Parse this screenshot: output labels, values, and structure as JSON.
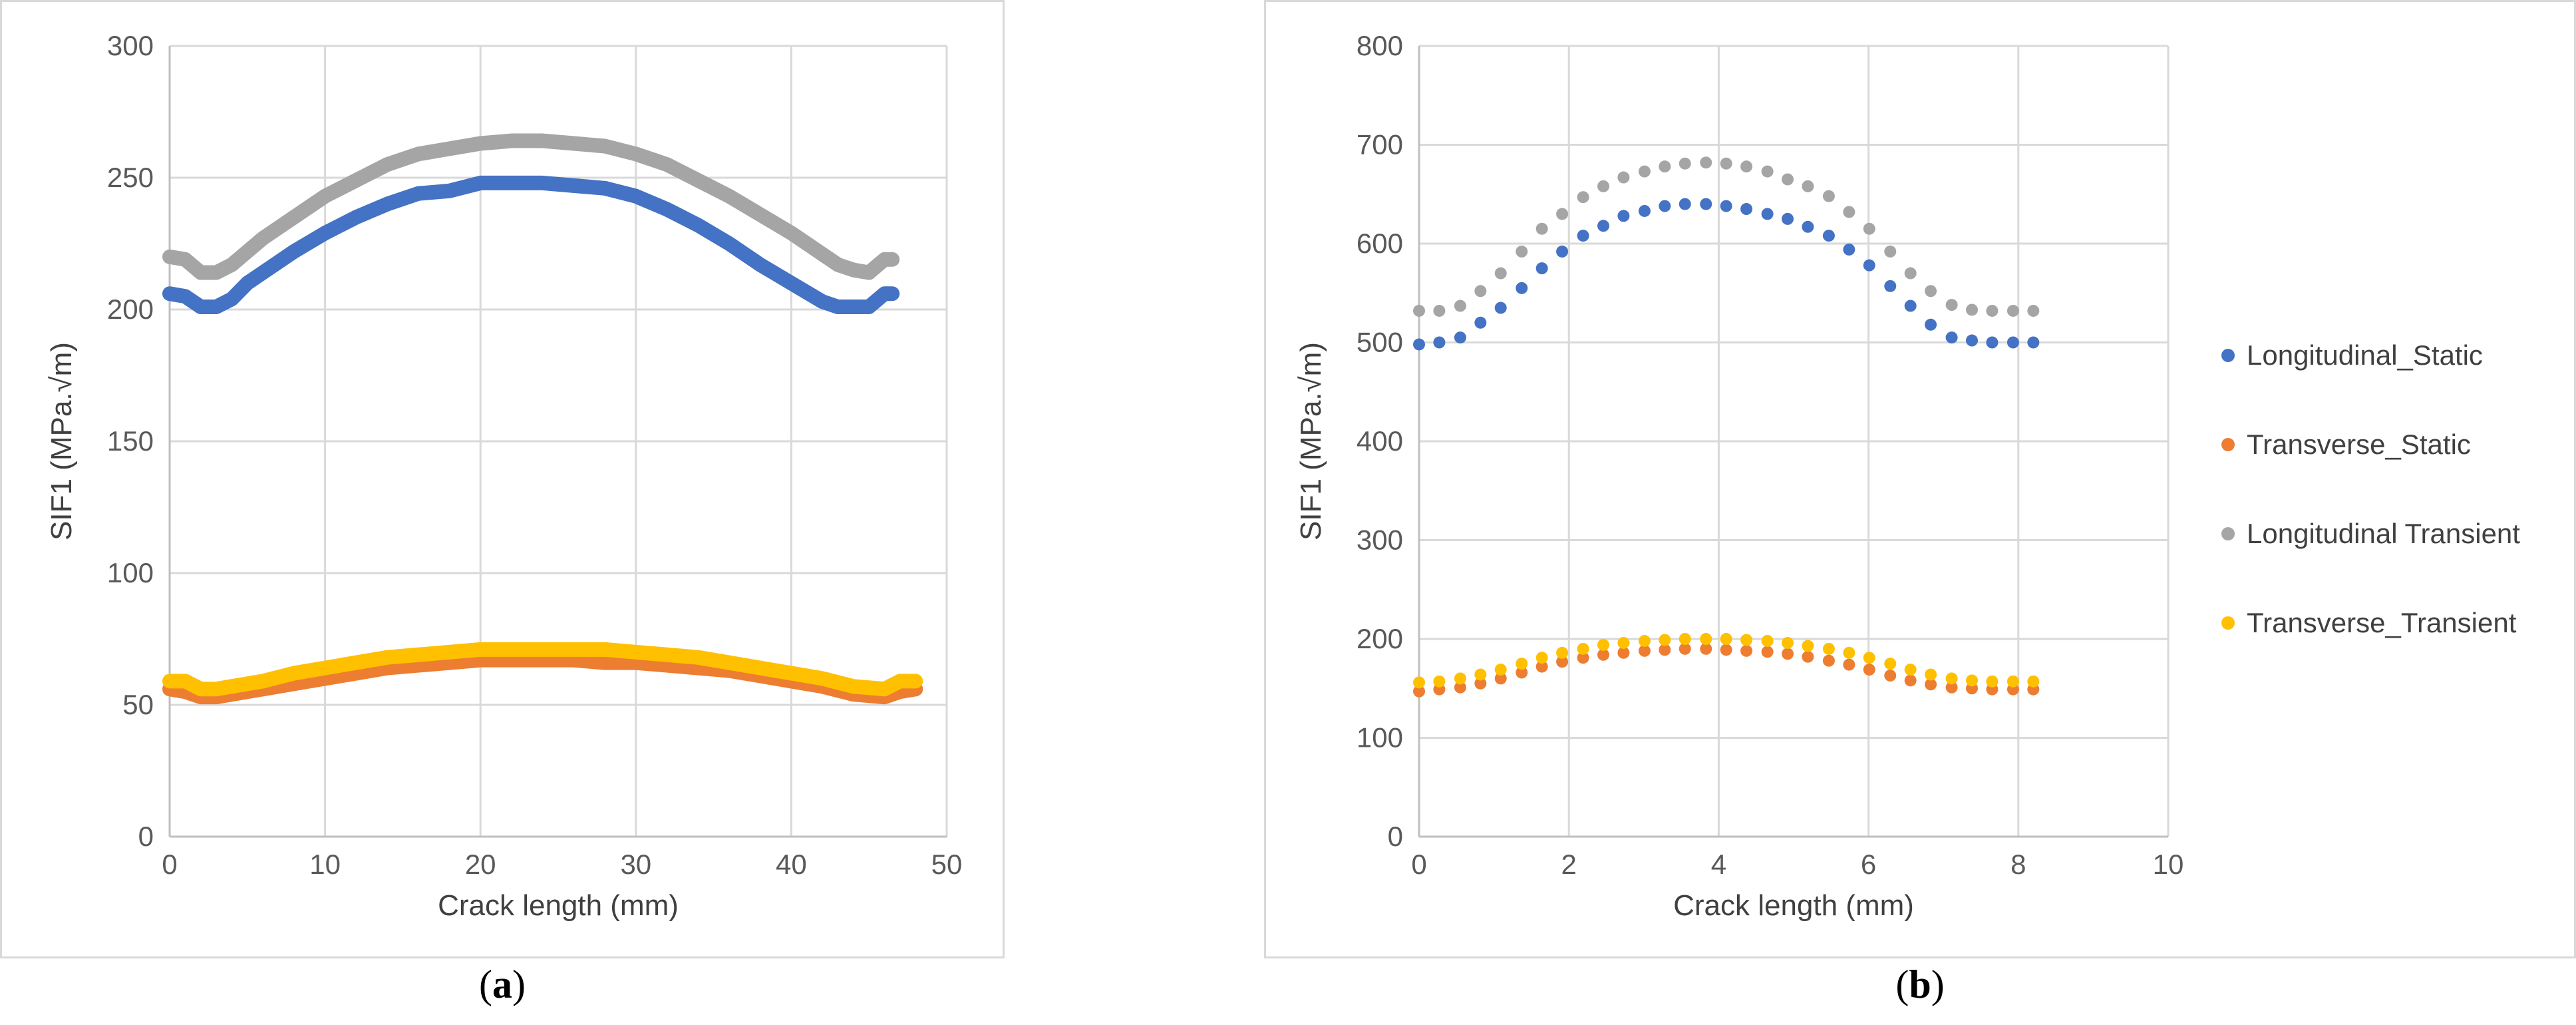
{
  "captions": {
    "a_letter": "a",
    "b_letter": "b"
  },
  "chart_data": [
    {
      "type": "line",
      "xlabel": "Crack length (mm)",
      "ylabel": "SIF1 (MPa.√m)",
      "xlim": [
        0,
        50
      ],
      "ylim": [
        0,
        300
      ],
      "xticks": [
        "0",
        "10",
        "20",
        "30",
        "40",
        "50"
      ],
      "yticks": [
        "0",
        "50",
        "100",
        "150",
        "200",
        "250",
        "300"
      ],
      "grid": true,
      "legend": "none",
      "series": [
        {
          "color": "#4472c4",
          "x": [
            0,
            1,
            2,
            3,
            4,
            5,
            6,
            8,
            10,
            12,
            14,
            16,
            18,
            20,
            22,
            24,
            26,
            28,
            30,
            32,
            34,
            36,
            38,
            40,
            42,
            43,
            44,
            45,
            46,
            46.5
          ],
          "y": [
            206,
            205,
            201,
            201,
            204,
            210,
            214,
            222,
            229,
            235,
            240,
            244,
            245,
            248,
            248,
            248,
            247,
            246,
            243,
            238,
            232,
            225,
            217,
            210,
            203,
            201,
            201,
            201,
            206,
            206
          ]
        },
        {
          "color": "#a5a5a5",
          "x": [
            0,
            1,
            2,
            3,
            4,
            5,
            6,
            8,
            10,
            12,
            14,
            16,
            18,
            20,
            22,
            24,
            26,
            28,
            30,
            32,
            34,
            36,
            38,
            40,
            42,
            43,
            44,
            45,
            46,
            46.5
          ],
          "y": [
            220,
            219,
            214,
            214,
            217,
            222,
            227,
            235,
            243,
            249,
            255,
            259,
            261,
            263,
            264,
            264,
            263,
            262,
            259,
            255,
            249,
            243,
            236,
            229,
            221,
            217,
            215,
            214,
            219,
            219
          ]
        },
        {
          "color": "#ed7d31",
          "x": [
            0,
            1,
            2,
            3,
            4,
            6,
            8,
            10,
            12,
            14,
            16,
            18,
            20,
            22,
            24,
            26,
            28,
            30,
            32,
            34,
            36,
            38,
            40,
            42,
            44,
            46,
            47,
            48
          ],
          "y": [
            56,
            55,
            53,
            53,
            54,
            56,
            58,
            60,
            62,
            64,
            65,
            66,
            67,
            67,
            67,
            67,
            66,
            66,
            65,
            64,
            63,
            61,
            59,
            57,
            54,
            53,
            55,
            56
          ]
        },
        {
          "color": "#ffc000",
          "x": [
            0,
            1,
            2,
            3,
            4,
            6,
            8,
            10,
            12,
            14,
            16,
            18,
            20,
            22,
            24,
            26,
            28,
            30,
            32,
            34,
            36,
            38,
            40,
            42,
            44,
            46,
            47,
            48
          ],
          "y": [
            59,
            59,
            56,
            56,
            57,
            59,
            62,
            64,
            66,
            68,
            69,
            70,
            71,
            71,
            71,
            71,
            71,
            70,
            69,
            68,
            66,
            64,
            62,
            60,
            57,
            56,
            59,
            59
          ]
        }
      ]
    },
    {
      "type": "scatter",
      "xlabel": "Crack length (mm)",
      "ylabel": "SIF1 (MPa.√m)",
      "xlim": [
        0,
        10
      ],
      "ylim": [
        0,
        800
      ],
      "xticks": [
        "0",
        "2",
        "4",
        "6",
        "8",
        "10"
      ],
      "yticks": [
        "0",
        "100",
        "200",
        "300",
        "400",
        "500",
        "600",
        "700",
        "800"
      ],
      "grid": true,
      "legend": "right",
      "x": [
        0,
        0.27,
        0.55,
        0.82,
        1.09,
        1.37,
        1.64,
        1.91,
        2.19,
        2.46,
        2.73,
        3.01,
        3.28,
        3.55,
        3.83,
        4.1,
        4.37,
        4.65,
        4.92,
        5.19,
        5.47,
        5.74,
        6.01,
        6.29,
        6.56,
        6.83,
        7.11,
        7.38,
        7.65,
        7.93,
        8.2
      ],
      "series": [
        {
          "name": "Longitudinal_Static",
          "color": "#4472c4",
          "y": [
            498,
            500,
            505,
            520,
            535,
            555,
            575,
            592,
            608,
            618,
            628,
            633,
            638,
            640,
            640,
            638,
            635,
            630,
            625,
            617,
            608,
            594,
            578,
            557,
            537,
            518,
            505,
            502,
            500,
            500,
            500
          ]
        },
        {
          "name": "Transverse_Static",
          "color": "#ed7d31",
          "y": [
            147,
            149,
            151,
            155,
            160,
            166,
            172,
            177,
            181,
            184,
            186,
            188,
            189,
            190,
            190,
            189,
            188,
            187,
            185,
            182,
            178,
            174,
            169,
            163,
            158,
            154,
            151,
            150,
            149,
            149,
            149
          ]
        },
        {
          "name": "Longitudinal Transient",
          "color": "#a5a5a5",
          "y": [
            532,
            532,
            537,
            552,
            570,
            592,
            615,
            630,
            647,
            658,
            667,
            673,
            678,
            681,
            682,
            681,
            678,
            673,
            665,
            658,
            648,
            632,
            615,
            592,
            570,
            552,
            538,
            533,
            532,
            532,
            532
          ]
        },
        {
          "name": "Transverse_Transient",
          "color": "#ffc000",
          "y": [
            156,
            157,
            160,
            164,
            169,
            175,
            181,
            186,
            190,
            194,
            196,
            198,
            199,
            200,
            200,
            200,
            199,
            198,
            196,
            193,
            190,
            186,
            181,
            175,
            169,
            164,
            160,
            158,
            157,
            157,
            157
          ]
        }
      ]
    }
  ]
}
